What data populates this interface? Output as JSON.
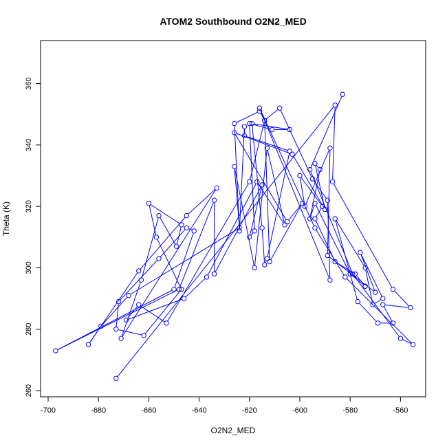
{
  "chart_data": {
    "type": "line",
    "title": "ATOM2 Southbound O2N2_MED",
    "xlabel": "O2N2_MED",
    "ylabel": "Theta (K)",
    "xlim": [
      -703,
      -550
    ],
    "ylim": [
      258,
      374
    ],
    "x_ticks": [
      -700,
      -680,
      -660,
      -640,
      -620,
      -600,
      -580,
      -560
    ],
    "y_ticks": [
      260,
      280,
      300,
      320,
      340,
      360
    ],
    "grid": false,
    "legend": "none",
    "series": [
      {
        "color": "#0000ff",
        "markers": "open-circle",
        "points": [
          [
            -583,
            356.5
          ],
          [
            -596,
            332
          ],
          [
            -579,
            298
          ],
          [
            -560,
            277
          ],
          [
            -555,
            275
          ],
          [
            -582,
            297
          ],
          [
            -594,
            313
          ],
          [
            -616,
            352
          ],
          [
            -588,
            296
          ],
          [
            -589,
            322
          ],
          [
            -595,
            329
          ],
          [
            -608,
            352
          ],
          [
            -614,
            348
          ],
          [
            -620,
            328
          ],
          [
            -653,
            282
          ],
          [
            -664,
            288
          ],
          [
            -669,
            283
          ],
          [
            -646,
            290
          ],
          [
            -637,
            297
          ],
          [
            -617,
            328
          ],
          [
            -606,
            314
          ],
          [
            -613,
            339
          ],
          [
            -618,
            300
          ],
          [
            -626,
            333
          ],
          [
            -624,
            313
          ],
          [
            -668,
            291
          ],
          [
            -679,
            281
          ],
          [
            -684,
            275
          ],
          [
            -664,
            299
          ],
          [
            -645,
            317
          ],
          [
            -633,
            326
          ],
          [
            -671,
            277
          ],
          [
            -663,
            296
          ],
          [
            -656,
            317
          ],
          [
            -649,
            307
          ],
          [
            -647,
            314
          ],
          [
            -660,
            321
          ],
          [
            -657,
            310
          ],
          [
            -647,
            293
          ],
          [
            -662,
            278
          ],
          [
            -673,
            280
          ],
          [
            -672,
            289
          ],
          [
            -656,
            303
          ],
          [
            -645,
            313
          ],
          [
            -642,
            312
          ],
          [
            -650,
            293
          ],
          [
            -697,
            273
          ],
          [
            -648,
            293
          ],
          [
            -634,
            322
          ],
          [
            -634,
            298
          ],
          [
            -615,
            327
          ],
          [
            -620,
            310
          ],
          [
            -618,
            312
          ],
          [
            -620,
            347
          ],
          [
            -611,
            345
          ],
          [
            -604,
            345
          ],
          [
            -619,
            347
          ],
          [
            -615,
            313
          ],
          [
            -614,
            301
          ],
          [
            -613,
            303
          ],
          [
            -604,
            338
          ],
          [
            -622,
            343
          ],
          [
            -622,
            346
          ],
          [
            -624,
            312
          ],
          [
            -626,
            347
          ],
          [
            -616,
            351
          ],
          [
            -614,
            348
          ],
          [
            -612,
            302
          ],
          [
            -599,
            321
          ],
          [
            -605,
            315
          ],
          [
            -626,
            344
          ],
          [
            -603,
            337
          ],
          [
            -590,
            319
          ],
          [
            -594,
            334
          ],
          [
            -592,
            332
          ],
          [
            -596,
            316
          ],
          [
            -594,
            321
          ],
          [
            -580,
            298
          ],
          [
            -574,
            294
          ],
          [
            -578,
            298
          ],
          [
            -586,
            302
          ],
          [
            -594,
            316
          ],
          [
            -591,
            320
          ],
          [
            -600,
            330
          ],
          [
            -598,
            320
          ],
          [
            -588,
            339
          ],
          [
            -589,
            304
          ],
          [
            -570,
            292
          ],
          [
            -576,
            305
          ],
          [
            -567,
            290
          ],
          [
            -571,
            288
          ],
          [
            -574,
            300
          ],
          [
            -586,
            316
          ],
          [
            -577,
            289
          ],
          [
            -569,
            282
          ],
          [
            -563,
            282
          ],
          [
            -567,
            288
          ],
          [
            -556,
            287
          ],
          [
            -563,
            293
          ],
          [
            -587,
            328
          ],
          [
            -586,
            353
          ],
          [
            -673,
            264
          ]
        ]
      }
    ]
  }
}
